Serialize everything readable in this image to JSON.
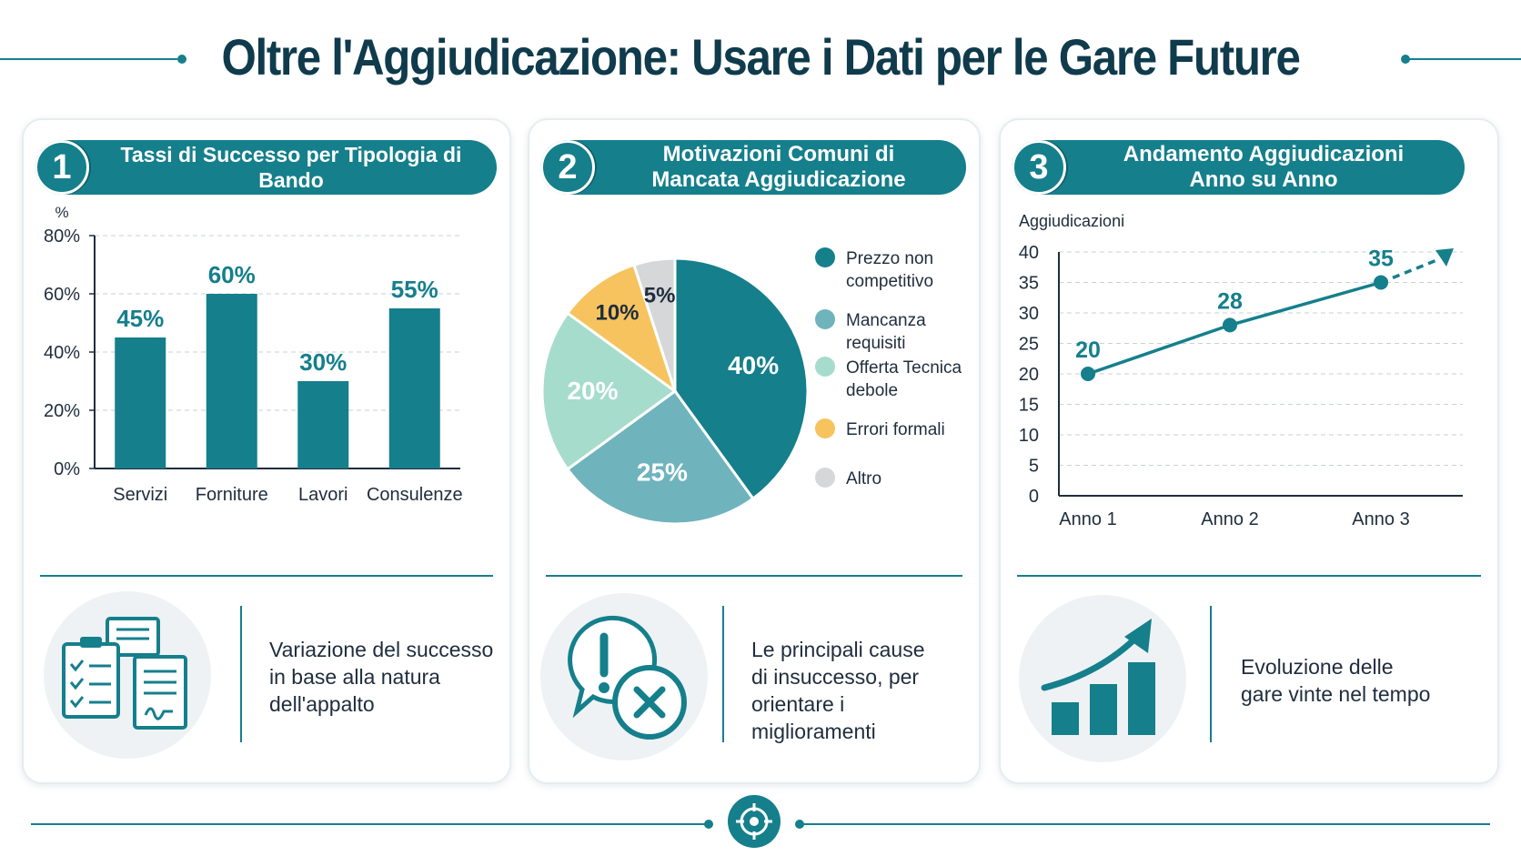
{
  "title": "Oltre l'Aggiudicazione: Usare i Dati per le Gare Future",
  "cards": [
    {
      "number": "1",
      "heading": "Tassi di Successo per Tipologia di Bando",
      "caption_lines": [
        "Variazione del successo",
        "in base alla natura",
        "dell'appalto"
      ],
      "icon": "clipboard-documents-icon"
    },
    {
      "number": "2",
      "heading_lines": [
        "Motivazioni Comuni di",
        "Mancata Aggiudicazione"
      ],
      "caption_lines": [
        "Le principali cause",
        "di insuccesso, per",
        "orientare i miglioramenti"
      ],
      "icon": "warning-error-bubble-icon"
    },
    {
      "number": "3",
      "heading_lines": [
        "Andamento Aggiudicazioni",
        "Anno su Anno"
      ],
      "caption_lines": [
        "Evoluzione delle",
        "gare vinte nel tempo"
      ],
      "icon": "growth-bar-chart-icon"
    }
  ],
  "chart_data": [
    {
      "type": "bar",
      "title": "Tassi di Successo per Tipologia di Bando",
      "ylabel": "%",
      "categories": [
        "Servizi",
        "Forniture",
        "Lavori",
        "Consulenze"
      ],
      "values": [
        45,
        60,
        30,
        55
      ],
      "value_labels": [
        "45%",
        "60%",
        "30%",
        "55%"
      ],
      "yticks": [
        0,
        20,
        40,
        60,
        80
      ],
      "ytick_labels": [
        "0%",
        "20%",
        "40%",
        "60%",
        "80%"
      ],
      "ylim": [
        0,
        80
      ],
      "grid": true,
      "color": "#157f8c"
    },
    {
      "type": "pie",
      "title": "Motivazioni Comuni di Mancata Aggiudicazione",
      "slices": [
        {
          "label": "Prezzo non competitivo",
          "legend_lines": [
            "Prezzo non",
            "competitivo"
          ],
          "value": 40,
          "value_label": "40%",
          "color": "#157f8c"
        },
        {
          "label": "Mancanza requisiti",
          "legend_lines": [
            "Mancanza requisiti"
          ],
          "value": 25,
          "value_label": "25%",
          "color": "#6fb3bd"
        },
        {
          "label": "Offerta Tecnica debole",
          "legend_lines": [
            "Offerta Tecnica",
            "debole"
          ],
          "value": 20,
          "value_label": "20%",
          "color": "#a6dccb"
        },
        {
          "label": "Errori formali",
          "legend_lines": [
            "Errori formali"
          ],
          "value": 10,
          "value_label": "10%",
          "color": "#f6c35e"
        },
        {
          "label": "Altro",
          "legend_lines": [
            "Altro"
          ],
          "value": 5,
          "value_label": "5%",
          "color": "#d5d7d9"
        }
      ],
      "legend_position": "right"
    },
    {
      "type": "line",
      "title": "Andamento Aggiudicazioni Anno su Anno",
      "ylabel": "Aggiudicazioni",
      "categories": [
        "Anno 1",
        "Anno 2",
        "Anno 3"
      ],
      "values": [
        20,
        28,
        35
      ],
      "value_labels": [
        "20",
        "28",
        "35"
      ],
      "yticks": [
        0,
        5,
        10,
        15,
        20,
        25,
        30,
        35,
        40
      ],
      "ytick_labels": [
        "0",
        "5",
        "10",
        "15",
        "20",
        "25",
        "30",
        "35",
        "40"
      ],
      "ylim": [
        0,
        40
      ],
      "grid": true,
      "trend_arrow": true,
      "color": "#157f8c"
    }
  ]
}
